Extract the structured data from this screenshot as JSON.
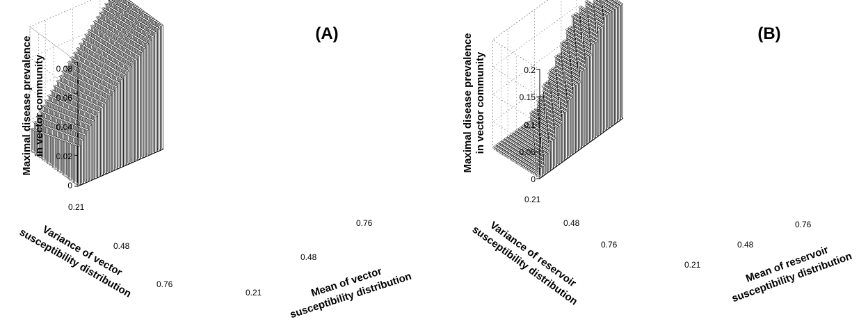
{
  "figure": {
    "panels": [
      {
        "label": "(A)",
        "zlabel_line1": "Maximal disease prevalence",
        "zlabel_line2": "in vector community",
        "xlabel_line1": "Mean of vector",
        "xlabel_line2": "susceptibility distribution",
        "ylabel_line1": "Variance of vector",
        "ylabel_line2": "susceptibility distribution",
        "zticks": [
          "0",
          "0.02",
          "0.04",
          "0.06",
          "0.08"
        ],
        "xticks": [
          "0.21",
          "0.48",
          "0.76"
        ],
        "yticks": [
          "0.21",
          "0.48",
          "0.76"
        ]
      },
      {
        "label": "(B)",
        "zlabel_line1": "Maximal disease prevalence",
        "zlabel_line2": "in vector community",
        "xlabel_line1": "Mean of reservoir",
        "xlabel_line2": "susceptibility distribution",
        "ylabel_line1": "Variance of reservoir",
        "ylabel_line2": "susceptibility distribution",
        "zticks": [
          "0",
          "0.05",
          "0.1",
          "0.15",
          "0.2"
        ],
        "xticks": [
          "0.21",
          "0.48",
          "0.76"
        ],
        "yticks": [
          "0.21",
          "0.48",
          "0.76"
        ]
      }
    ]
  },
  "chart_data": [
    {
      "type": "bar3d",
      "title": "(A)",
      "xlabel": "Mean of vector susceptibility distribution",
      "ylabel": "Variance of vector susceptibility distribution",
      "zlabel": "Maximal disease prevalence in vector community",
      "xlim": [
        0.08,
        0.9
      ],
      "ylim": [
        0.08,
        0.9
      ],
      "zlim": [
        0,
        0.08
      ],
      "xticks": [
        0.21,
        0.48,
        0.76
      ],
      "yticks": [
        0.21,
        0.48,
        0.76
      ],
      "zticks": [
        0,
        0.02,
        0.04,
        0.06,
        0.08
      ],
      "grid": true,
      "surface_description": "Bar heights increase with mean susceptibility (about 0.027 at mean 0.08 to about 0.085 at mean 0.9) and decrease slightly with variance; all bars positive."
    },
    {
      "type": "bar3d",
      "title": "(B)",
      "xlabel": "Mean of reservoir susceptibility distribution",
      "ylabel": "Variance of reservoir susceptibility distribution",
      "zlabel": "Maximal disease prevalence in vector community",
      "xlim": [
        0.08,
        0.9
      ],
      "ylim": [
        0.08,
        0.9
      ],
      "zlim": [
        0,
        0.2
      ],
      "xticks": [
        0.21,
        0.48,
        0.76
      ],
      "yticks": [
        0.21,
        0.48,
        0.76
      ],
      "zticks": [
        0,
        0.05,
        0.1,
        0.15,
        0.2
      ],
      "grid": true,
      "surface_description": "Near-zero prevalence for low mean / high variance; rises in terraces to about 0.2 at high mean and low variance."
    }
  ]
}
